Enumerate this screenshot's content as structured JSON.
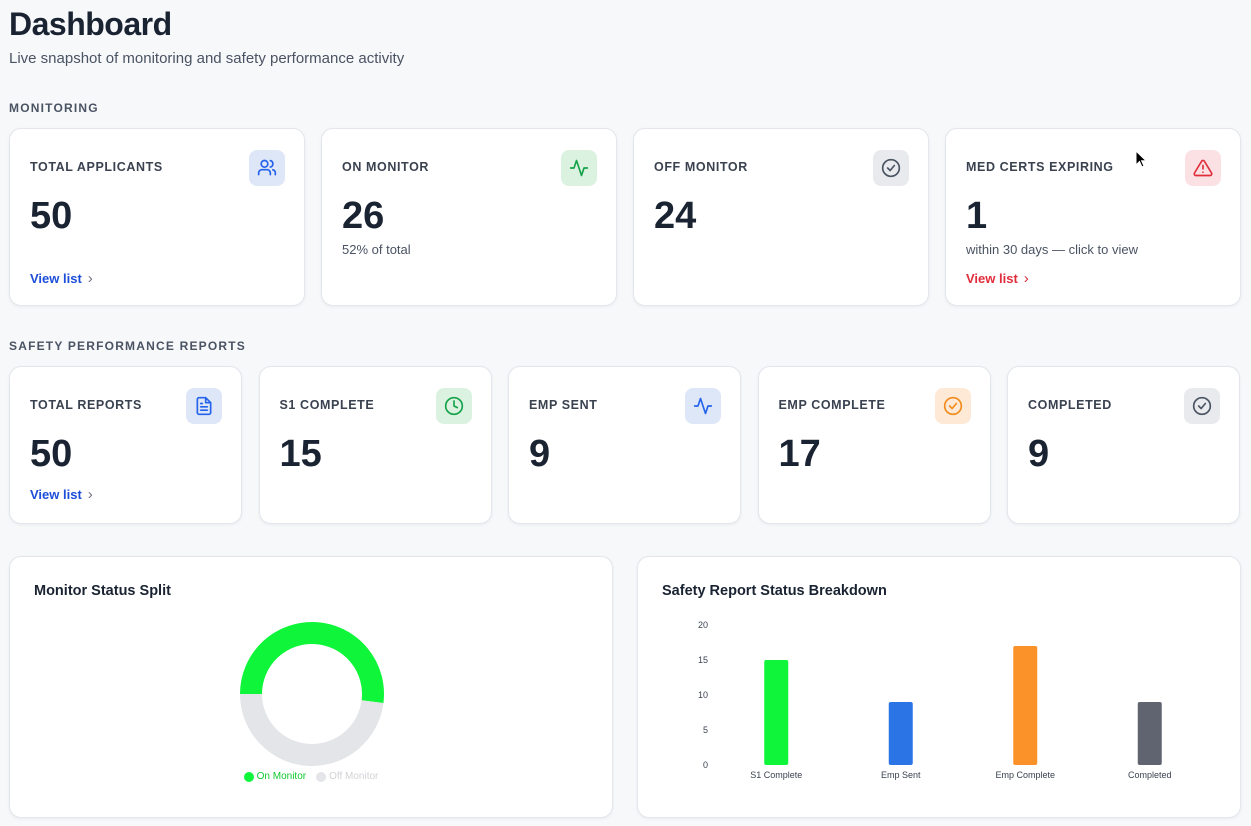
{
  "header": {
    "title": "Dashboard",
    "subtitle": "Live snapshot of monitoring and safety performance activity"
  },
  "monitoring": {
    "section_label": "MONITORING",
    "cards": [
      {
        "title": "TOTAL APPLICANTS",
        "value": "50",
        "note": "",
        "link": "View list",
        "icon": "users-icon",
        "accent": "#2563eb",
        "icon_bg": "#dde7f7"
      },
      {
        "title": "ON MONITOR",
        "value": "26",
        "note": "52% of total",
        "link": "",
        "icon": "activity-icon",
        "accent": "#16a34a",
        "icon_bg": "#dcf2e1"
      },
      {
        "title": "OFF MONITOR",
        "value": "24",
        "note": "",
        "link": "",
        "icon": "check-circle-icon",
        "accent": "#4b5563",
        "icon_bg": "#e8eaed"
      },
      {
        "title": "MED CERTS EXPIRING",
        "value": "1",
        "note": "within 30 days — click to view",
        "link": "View list",
        "icon": "alert-triangle-icon",
        "accent": "#e02d3c",
        "icon_bg": "#fbe1e3"
      }
    ]
  },
  "safety": {
    "section_label": "SAFETY PERFORMANCE REPORTS",
    "cards": [
      {
        "title": "TOTAL REPORTS",
        "value": "50",
        "link": "View list",
        "icon": "file-text-icon",
        "accent": "#2563eb",
        "icon_bg": "#dde7f7"
      },
      {
        "title": "S1 COMPLETE",
        "value": "15",
        "link": "",
        "icon": "clock-icon",
        "accent": "#16a34a",
        "icon_bg": "#dcf2e1"
      },
      {
        "title": "EMP SENT",
        "value": "9",
        "link": "",
        "icon": "activity-icon",
        "accent": "#2563eb",
        "icon_bg": "#dde7f7"
      },
      {
        "title": "EMP COMPLETE",
        "value": "17",
        "link": "",
        "icon": "check-circle-icon",
        "accent": "#f28c1e",
        "icon_bg": "#fde9d6"
      },
      {
        "title": "COMPLETED",
        "value": "9",
        "link": "",
        "icon": "check-circle-icon",
        "accent": "#4b5563",
        "icon_bg": "#e8eaed"
      }
    ]
  },
  "panels": {
    "donut_title": "Monitor Status Split",
    "bar_title": "Safety Report Status Breakdown"
  },
  "chart_data": [
    {
      "type": "pie",
      "title": "Monitor Status Split",
      "categories": [
        "On Monitor",
        "Off Monitor"
      ],
      "values": [
        26,
        24
      ],
      "colors": [
        "#0ef53a",
        "#e4e5e9"
      ],
      "legend_position": "bottom"
    },
    {
      "type": "bar",
      "title": "Safety Report Status Breakdown",
      "categories": [
        "S1 Complete",
        "Emp Sent",
        "Emp Complete",
        "Completed"
      ],
      "values": [
        15,
        9,
        17,
        9
      ],
      "colors": [
        "#0ef53a",
        "#2b74e6",
        "#fb9229",
        "#5f6470"
      ],
      "yticks": [
        0,
        5,
        10,
        15,
        20
      ],
      "ylim": [
        0,
        20
      ],
      "grid": false
    }
  ]
}
